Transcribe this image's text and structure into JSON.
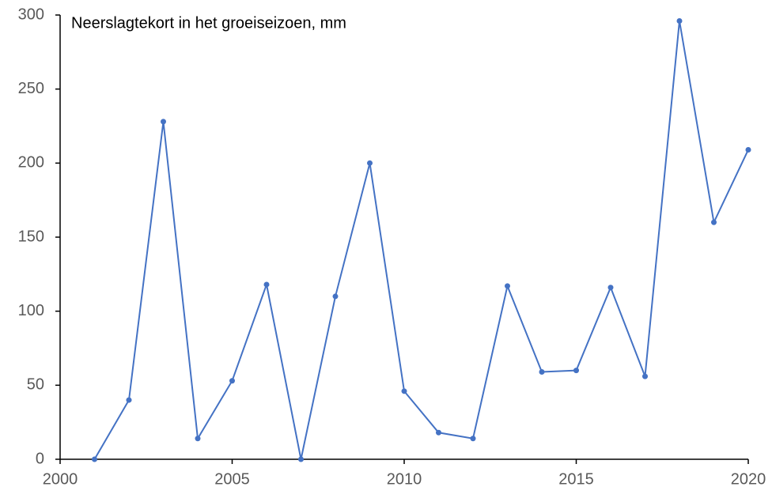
{
  "chart_data": {
    "type": "line",
    "title": "Neerslagtekort in het groeiseizoen, mm",
    "x": [
      2001,
      2002,
      2003,
      2004,
      2005,
      2006,
      2007,
      2008,
      2009,
      2010,
      2011,
      2012,
      2013,
      2014,
      2015,
      2016,
      2017,
      2018,
      2019,
      2020
    ],
    "series": [
      {
        "name": "Neerslagtekort",
        "color": "#4472c4",
        "values": [
          0,
          40,
          228,
          14,
          53,
          118,
          0,
          110,
          200,
          46,
          18,
          14,
          117,
          59,
          60,
          116,
          56,
          296,
          160,
          209
        ]
      }
    ],
    "xlim": [
      2000,
      2020
    ],
    "xticks": [
      2000,
      2005,
      2010,
      2015,
      2020
    ],
    "ylim": [
      0,
      300
    ],
    "yticks": [
      0,
      50,
      100,
      150,
      200,
      250,
      300
    ],
    "grid": false,
    "markers": true
  }
}
